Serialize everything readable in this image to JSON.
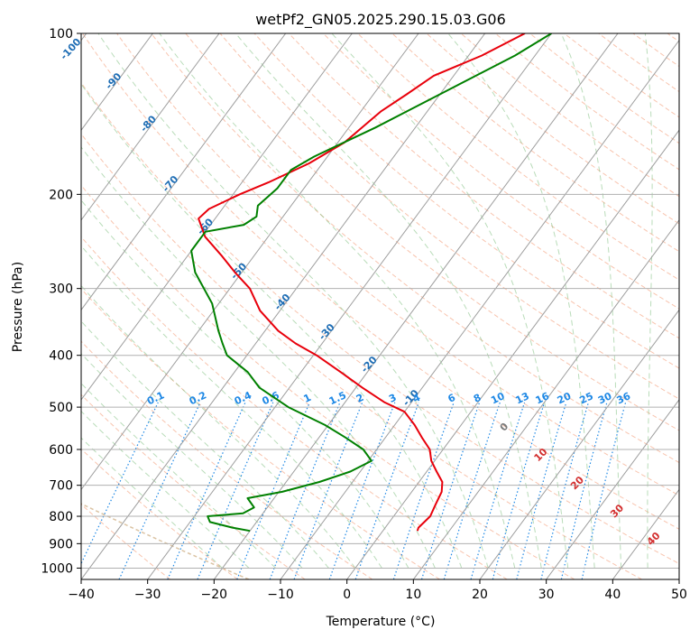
{
  "chart_data": {
    "type": "line",
    "title": "wetPf2_GN05.2025.290.15.03.G06",
    "xlabel": "Temperature (°C)",
    "ylabel": "Pressure (hPa)",
    "xlim": [
      -40,
      50
    ],
    "ylim": [
      1050,
      100
    ],
    "y_scale": "log",
    "x_ticks": [
      -40,
      -30,
      -20,
      -10,
      0,
      10,
      20,
      30,
      40,
      50
    ],
    "y_ticks": [
      100,
      200,
      300,
      400,
      500,
      600,
      700,
      800,
      900,
      1000
    ],
    "grid": true,
    "series": [
      {
        "color": "#e8000b",
        "points": [
          [
            -34.0,
            100
          ],
          [
            -38.0,
            110
          ],
          [
            -43.0,
            120
          ],
          [
            -45.0,
            130
          ],
          [
            -47.0,
            140
          ],
          [
            -49.0,
            160
          ],
          [
            -52.0,
            175
          ],
          [
            -56.0,
            190
          ],
          [
            -59.0,
            200
          ],
          [
            -62.0,
            213
          ],
          [
            -62.5,
            222
          ],
          [
            -59.5,
            240
          ],
          [
            -55.0,
            260
          ],
          [
            -51.0,
            280
          ],
          [
            -47.0,
            300
          ],
          [
            -43.0,
            330
          ],
          [
            -38.0,
            360
          ],
          [
            -34.0,
            380
          ],
          [
            -29.5,
            400
          ],
          [
            -24.0,
            430
          ],
          [
            -19.0,
            460
          ],
          [
            -14.0,
            490
          ],
          [
            -10.0,
            510
          ],
          [
            -7.0,
            540
          ],
          [
            -4.5,
            570
          ],
          [
            -2.0,
            600
          ],
          [
            -0.5,
            630
          ],
          [
            1.5,
            660
          ],
          [
            3.5,
            690
          ],
          [
            4.5,
            720
          ],
          [
            5.0,
            760
          ],
          [
            5.5,
            800
          ],
          [
            5.0,
            840
          ],
          [
            5.2,
            852
          ]
        ]
      },
      {
        "color": "#008000",
        "points": [
          [
            -30.0,
            100
          ],
          [
            -33.0,
            110
          ],
          [
            -40.0,
            130
          ],
          [
            -46.0,
            150
          ],
          [
            -52.0,
            170
          ],
          [
            -54.0,
            180
          ],
          [
            -54.0,
            195
          ],
          [
            -55.0,
            210
          ],
          [
            -54.0,
            220
          ],
          [
            -55.0,
            228
          ],
          [
            -60.0,
            235
          ],
          [
            -60.0,
            255
          ],
          [
            -57.0,
            280
          ],
          [
            -51.0,
            320
          ],
          [
            -47.0,
            360
          ],
          [
            -45.0,
            380
          ],
          [
            -43.0,
            400
          ],
          [
            -38.0,
            430
          ],
          [
            -34.5,
            460
          ],
          [
            -28.0,
            500
          ],
          [
            -20.5,
            540
          ],
          [
            -16.0,
            570
          ],
          [
            -12.0,
            600
          ],
          [
            -9.5,
            630
          ],
          [
            -11.5,
            660
          ],
          [
            -15.0,
            690
          ],
          [
            -19.5,
            720
          ],
          [
            -24.0,
            740
          ],
          [
            -22.0,
            770
          ],
          [
            -23.0,
            790
          ],
          [
            -28.0,
            800
          ],
          [
            -27.0,
            820
          ],
          [
            -23.0,
            840
          ],
          [
            -20.0,
            852
          ]
        ]
      }
    ],
    "isotherm_labels": [
      "-100",
      "-90",
      "-80",
      "-70",
      "-60",
      "-50",
      "-40",
      "-30",
      "-20",
      "-10"
    ],
    "mixing_ratio_labels": [
      "0.1",
      "0.2",
      "0.4",
      "0.6",
      "1",
      "1.5",
      "2",
      "3",
      "4",
      "6",
      "8",
      "10",
      "13",
      "16",
      "20",
      "25",
      "30",
      "36"
    ],
    "moist_adiabat_labels": [
      "0",
      "10",
      "20",
      "30",
      "40"
    ]
  }
}
